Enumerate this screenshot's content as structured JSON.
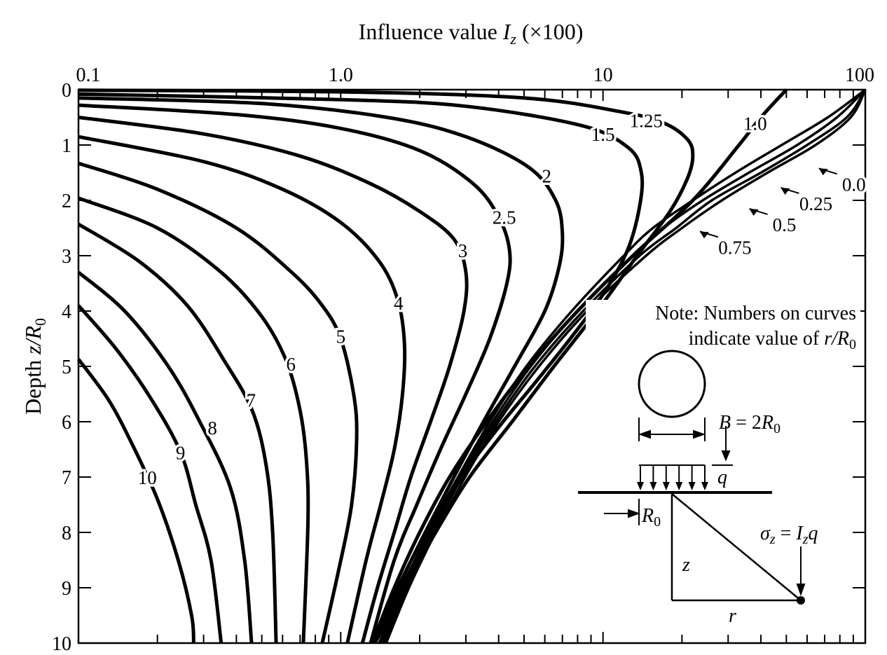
{
  "chart_data": {
    "type": "line",
    "title": {
      "main": "Influence value ",
      "var": "I",
      "sub": "z",
      "rest": " (×100)"
    },
    "ylabel": {
      "main": "Depth ",
      "var": "z/R",
      "sub": "0"
    },
    "xscale": "log",
    "xlim": [
      0.1,
      100
    ],
    "ylim": [
      0,
      10
    ],
    "y_inverted": true,
    "x_axis_position": "top",
    "grid": false,
    "x_tick_labels": [
      "0.1",
      "1.0",
      "10",
      "100"
    ],
    "x_ticks": [
      0.1,
      1,
      10,
      100
    ],
    "y_ticks": [
      0,
      1,
      2,
      3,
      4,
      5,
      6,
      7,
      8,
      9,
      10
    ],
    "y_tick_labels": [
      "0",
      "1",
      "2",
      "3",
      "4",
      "5",
      "6",
      "7",
      "8",
      "9",
      "10"
    ],
    "curve_color": "#000000",
    "series": [
      {
        "name": "10",
        "label_at": [
          0.183,
          7.0
        ],
        "points": [
          [
            0.1,
            4.87
          ],
          [
            0.13,
            5.6
          ],
          [
            0.16,
            6.4
          ],
          [
            0.2,
            7.4
          ],
          [
            0.24,
            8.5
          ],
          [
            0.27,
            9.5
          ],
          [
            0.275,
            10
          ]
        ]
      },
      {
        "name": "9",
        "label_at": [
          0.245,
          6.55
        ],
        "points": [
          [
            0.1,
            3.9
          ],
          [
            0.14,
            4.7
          ],
          [
            0.19,
            5.6
          ],
          [
            0.245,
            6.55
          ],
          [
            0.28,
            7.5
          ],
          [
            0.32,
            8.5
          ],
          [
            0.35,
            10
          ]
        ]
      },
      {
        "name": "8",
        "label_at": [
          0.324,
          6.1
        ],
        "points": [
          [
            0.1,
            3.3
          ],
          [
            0.15,
            4.0
          ],
          [
            0.22,
            5.0
          ],
          [
            0.29,
            6.0
          ],
          [
            0.38,
            7.2
          ],
          [
            0.43,
            8.5
          ],
          [
            0.457,
            10
          ]
        ]
      },
      {
        "name": "7",
        "label_at": [
          0.455,
          5.6
        ],
        "points": [
          [
            0.1,
            2.43
          ],
          [
            0.17,
            3.1
          ],
          [
            0.26,
            3.9
          ],
          [
            0.36,
            4.9
          ],
          [
            0.46,
            5.8
          ],
          [
            0.52,
            6.8
          ],
          [
            0.55,
            8
          ],
          [
            0.567,
            10
          ]
        ]
      },
      {
        "name": "6",
        "label_at": [
          0.646,
          4.95
        ],
        "points": [
          [
            0.1,
            1.96
          ],
          [
            0.2,
            2.5
          ],
          [
            0.35,
            3.3
          ],
          [
            0.5,
            4.1
          ],
          [
            0.62,
            4.9
          ],
          [
            0.7,
            5.8
          ],
          [
            0.74,
            6.7
          ],
          [
            0.75,
            7.8
          ],
          [
            0.72,
            10
          ]
        ]
      },
      {
        "name": "5",
        "label_at": [
          1.0,
          4.45
        ],
        "points": [
          [
            0.1,
            1.33
          ],
          [
            0.2,
            1.8
          ],
          [
            0.4,
            2.5
          ],
          [
            0.65,
            3.3
          ],
          [
            0.85,
            3.9
          ],
          [
            1.0,
            4.5
          ],
          [
            1.12,
            5.5
          ],
          [
            1.15,
            6.3
          ],
          [
            1.1,
            7.5
          ],
          [
            0.98,
            8.7
          ],
          [
            0.85,
            10
          ]
        ]
      },
      {
        "name": "4",
        "label_at": [
          1.66,
          3.85
        ],
        "points": [
          [
            0.1,
            0.85
          ],
          [
            0.3,
            1.3
          ],
          [
            0.6,
            1.8
          ],
          [
            1.0,
            2.4
          ],
          [
            1.4,
            3.1
          ],
          [
            1.65,
            3.8
          ],
          [
            1.75,
            4.6
          ],
          [
            1.72,
            5.5
          ],
          [
            1.6,
            6.5
          ],
          [
            1.42,
            7.5
          ],
          [
            1.25,
            8.5
          ],
          [
            1.06,
            10
          ]
        ]
      },
      {
        "name": "3",
        "label_at": [
          2.92,
          2.9
        ],
        "points": [
          [
            0.1,
            0.5
          ],
          [
            0.3,
            0.8
          ],
          [
            0.7,
            1.2
          ],
          [
            1.3,
            1.7
          ],
          [
            2.0,
            2.2
          ],
          [
            2.7,
            2.7
          ],
          [
            3.0,
            3.3
          ],
          [
            2.95,
            4.0
          ],
          [
            2.6,
            5.0
          ],
          [
            2.2,
            6.0
          ],
          [
            1.85,
            7
          ],
          [
            1.6,
            8
          ],
          [
            1.38,
            9
          ],
          [
            1.21,
            10
          ]
        ]
      },
      {
        "name": "2.5",
        "label_at": [
          4.2,
          2.3
        ],
        "points": [
          [
            0.1,
            0.28
          ],
          [
            0.4,
            0.45
          ],
          [
            1.0,
            0.7
          ],
          [
            2,
            1.1
          ],
          [
            3.2,
            1.7
          ],
          [
            4.0,
            2.3
          ],
          [
            4.4,
            2.9
          ],
          [
            4.3,
            3.5
          ],
          [
            3.7,
            4.5
          ],
          [
            3.0,
            5.5
          ],
          [
            2.4,
            6.5
          ],
          [
            1.95,
            7.5
          ],
          [
            1.6,
            8.5
          ],
          [
            1.3,
            10
          ]
        ]
      },
      {
        "name": "2",
        "label_at": [
          6.1,
          1.55
        ],
        "points": [
          [
            0.1,
            0.15
          ],
          [
            0.5,
            0.25
          ],
          [
            1.5,
            0.5
          ],
          [
            3,
            0.85
          ],
          [
            5.2,
            1.4
          ],
          [
            6.6,
            2.0
          ],
          [
            7.0,
            2.6
          ],
          [
            6.8,
            3.2
          ],
          [
            6.0,
            4.0
          ],
          [
            4.6,
            5
          ],
          [
            3.5,
            6
          ],
          [
            2.7,
            7
          ],
          [
            2.1,
            8
          ],
          [
            1.65,
            9
          ],
          [
            1.32,
            10
          ]
        ]
      },
      {
        "name": "1.5",
        "label_at": [
          10,
          0.8
        ],
        "points": [
          [
            0.1,
            0.08
          ],
          [
            1,
            0.18
          ],
          [
            3,
            0.3
          ],
          [
            8.3,
            0.65
          ],
          [
            12.5,
            1.05
          ],
          [
            14,
            1.5
          ],
          [
            13.8,
            2.1
          ],
          [
            12.4,
            2.9
          ],
          [
            10,
            3.7
          ],
          [
            7.5,
            4.5
          ],
          [
            5.5,
            5.3
          ],
          [
            4.0,
            6.1
          ],
          [
            2.9,
            7
          ],
          [
            2.2,
            8
          ],
          [
            1.7,
            9
          ],
          [
            1.33,
            10
          ]
        ]
      },
      {
        "name": "1.25",
        "label_at": [
          14.6,
          0.55
        ],
        "points": [
          [
            0.1,
            0.01
          ],
          [
            1,
            0.04
          ],
          [
            5,
            0.15
          ],
          [
            11.7,
            0.4
          ],
          [
            17,
            0.6
          ],
          [
            21,
            0.9
          ],
          [
            22,
            1.2
          ],
          [
            21,
            1.6
          ],
          [
            18,
            2.2
          ],
          [
            13.5,
            3.0
          ],
          [
            9.5,
            4.0
          ],
          [
            6.5,
            5
          ],
          [
            4.5,
            6
          ],
          [
            3.1,
            7
          ],
          [
            2.3,
            8
          ],
          [
            1.75,
            9
          ],
          [
            1.35,
            10
          ]
        ]
      },
      {
        "name": "1.0",
        "label_at": [
          38,
          0.6
        ],
        "points": [
          [
            50,
            0
          ],
          [
            40,
            0.5
          ],
          [
            33,
            1.0
          ],
          [
            22,
            2
          ],
          [
            13,
            3
          ],
          [
            8,
            4
          ],
          [
            5.2,
            5
          ],
          [
            3.6,
            6
          ],
          [
            2.6,
            7
          ],
          [
            2.0,
            8
          ],
          [
            1.6,
            9
          ],
          [
            1.32,
            10
          ]
        ]
      },
      {
        "name": "0.75",
        "label_at": [
          28.5,
          2.84
        ],
        "arrow": true,
        "points": [
          [
            100,
            0
          ],
          [
            72,
            0.5
          ],
          [
            48,
            1
          ],
          [
            32,
            1.5
          ],
          [
            22,
            2
          ],
          [
            15.5,
            2.5
          ],
          [
            12,
            3
          ],
          [
            7.6,
            4
          ],
          [
            5.1,
            5
          ],
          [
            3.7,
            6
          ],
          [
            2.8,
            7
          ],
          [
            2.15,
            8
          ],
          [
            1.72,
            9
          ],
          [
            1.4,
            10
          ]
        ]
      },
      {
        "name": "0.5",
        "label_at": [
          44,
          2.43
        ],
        "arrow": true,
        "points": [
          [
            100,
            0
          ],
          [
            78,
            0.5
          ],
          [
            55,
            1
          ],
          [
            36,
            1.5
          ],
          [
            24,
            2
          ],
          [
            17,
            2.5
          ],
          [
            13,
            3
          ],
          [
            8,
            4
          ],
          [
            5.3,
            5
          ],
          [
            3.8,
            6
          ],
          [
            2.85,
            7
          ],
          [
            2.2,
            8
          ],
          [
            1.75,
            9
          ],
          [
            1.43,
            10
          ]
        ]
      },
      {
        "name": "0.25",
        "label_at": [
          58,
          2.05
        ],
        "arrow": true,
        "points": [
          [
            100,
            0
          ],
          [
            85,
            0.5
          ],
          [
            60,
            1
          ],
          [
            40,
            1.5
          ],
          [
            26,
            2
          ],
          [
            19,
            2.5
          ],
          [
            13.8,
            3
          ],
          [
            8.4,
            4
          ],
          [
            5.5,
            5
          ],
          [
            3.9,
            6
          ],
          [
            2.9,
            7
          ],
          [
            2.25,
            8
          ],
          [
            1.78,
            9
          ],
          [
            1.46,
            10
          ]
        ]
      },
      {
        "name": "0.0",
        "label_at": [
          81,
          1.7
        ],
        "arrow": true,
        "points": [
          [
            100,
            0
          ],
          [
            88,
            0.5
          ],
          [
            64.6,
            1
          ],
          [
            42.4,
            1.5
          ],
          [
            28.4,
            2
          ],
          [
            20,
            2.5
          ],
          [
            14.6,
            3
          ],
          [
            8.7,
            4
          ],
          [
            5.7,
            5
          ],
          [
            4.0,
            6
          ],
          [
            2.98,
            7
          ],
          [
            2.3,
            8
          ],
          [
            1.82,
            9
          ],
          [
            1.49,
            10
          ]
        ]
      }
    ],
    "annotations": {
      "note_line1": "Note: Numbers on curves",
      "note_line2_main": "indicate value of ",
      "note_line2_var": "r/R",
      "note_line2_sub": "0",
      "b_main": "B",
      "b_eq": " = 2",
      "b_var": "R",
      "b_sub": "0",
      "q": "q",
      "r0_var": "R",
      "r0_sub": "0",
      "sigma_var": "σ",
      "sigma_sub": "z",
      "sigma_eq": " = ",
      "sigma_I": "I",
      "sigma_Isub": "z",
      "sigma_q": "q",
      "z": "z",
      "r": "r"
    }
  }
}
